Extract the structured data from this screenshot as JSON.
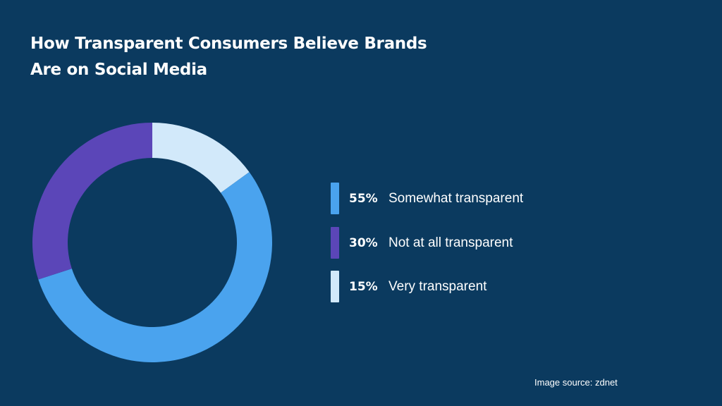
{
  "title_line1": "How Transparent Consumers Believe Brands",
  "title_line2": "Are on Social Media",
  "source": "Image source: zdnet",
  "background_color": "#0b3a5f",
  "chart_data": {
    "type": "pie",
    "donut": true,
    "title": "How Transparent Consumers Believe Brands Are on Social Media",
    "legend_position": "right",
    "slices": [
      {
        "value_label": "55%",
        "value": 55,
        "label": "Somewhat transparent",
        "color": "#4aa3ee"
      },
      {
        "value_label": "30%",
        "value": 30,
        "label": "Not at all transparent",
        "color": "#5b46b8"
      },
      {
        "value_label": "15%",
        "value": 15,
        "label": "Very transparent",
        "color": "#d2e9fa"
      }
    ],
    "drawn_order": [
      2,
      0,
      1
    ]
  }
}
